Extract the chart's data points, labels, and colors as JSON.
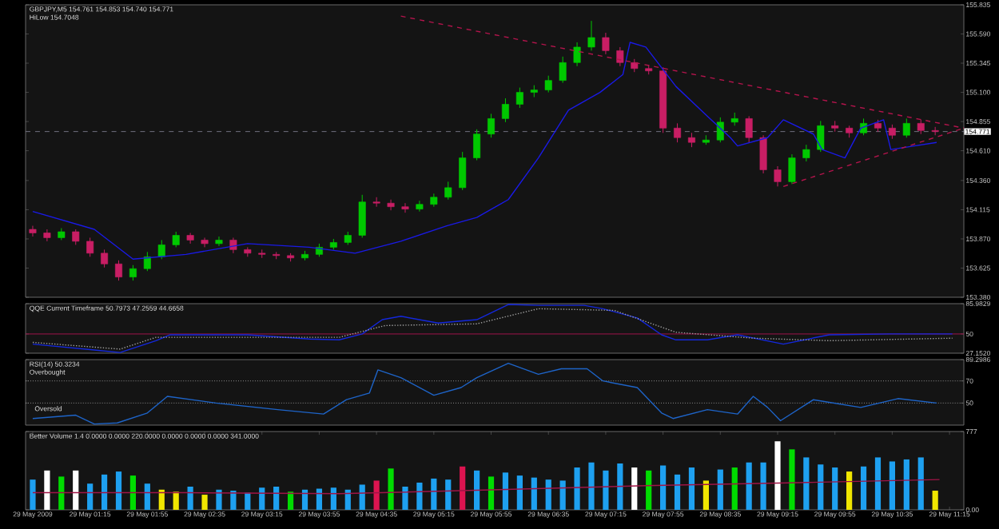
{
  "chart_data": [
    {
      "type": "candlestick",
      "title": "GBPJPY,M5 154.761 154.853 154.740 154.771",
      "annotations": [
        "HiLow 154.7048"
      ],
      "tick_labels": "y",
      "xlim": [
        "2009-05-29T00:30",
        "2009-05-29T11:25"
      ],
      "ylim": [
        153.38,
        155.835
      ],
      "yticks": [
        155.835,
        {
          "value": 155.59,
          "label": "155.590"
        },
        155.345,
        {
          "value": 155.1,
          "label": "155.100"
        },
        154.855,
        {
          "value": 154.61,
          "label": "154.610"
        },
        {
          "value": 154.36,
          "label": "154.360"
        },
        154.115,
        {
          "value": 153.87,
          "label": "153.870"
        },
        153.625,
        {
          "value": 153.38,
          "label": "153.380"
        }
      ],
      "x": [
        "2009-05-29T00:35",
        "2009-05-29T00:45",
        "2009-05-29T00:55",
        "2009-05-29T01:05",
        "2009-05-29T01:15",
        "2009-05-29T01:25",
        "2009-05-29T01:35",
        "2009-05-29T01:45",
        "2009-05-29T01:55",
        "2009-05-29T02:05",
        "2009-05-29T02:15",
        "2009-05-29T02:25",
        "2009-05-29T02:35",
        "2009-05-29T02:45",
        "2009-05-29T02:55",
        "2009-05-29T03:05",
        "2009-05-29T03:15",
        "2009-05-29T03:25",
        "2009-05-29T03:35",
        "2009-05-29T03:45",
        "2009-05-29T03:55",
        "2009-05-29T04:05",
        "2009-05-29T04:15",
        "2009-05-29T04:25",
        "2009-05-29T04:35",
        "2009-05-29T04:45",
        "2009-05-29T04:55",
        "2009-05-29T05:05",
        "2009-05-29T05:15",
        "2009-05-29T05:25",
        "2009-05-29T05:35",
        "2009-05-29T05:45",
        "2009-05-29T05:55",
        "2009-05-29T06:05",
        "2009-05-29T06:15",
        "2009-05-29T06:25",
        "2009-05-29T06:35",
        "2009-05-29T06:45",
        "2009-05-29T06:55",
        "2009-05-29T07:05",
        "2009-05-29T07:15",
        "2009-05-29T07:25",
        "2009-05-29T07:35",
        "2009-05-29T07:45",
        "2009-05-29T07:55",
        "2009-05-29T08:05",
        "2009-05-29T08:15",
        "2009-05-29T08:25",
        "2009-05-29T08:35",
        "2009-05-29T08:45",
        "2009-05-29T08:55",
        "2009-05-29T09:05",
        "2009-05-29T09:15",
        "2009-05-29T09:25",
        "2009-05-29T09:35",
        "2009-05-29T09:45",
        "2009-05-29T09:55",
        "2009-05-29T10:05",
        "2009-05-29T10:15",
        "2009-05-29T10:25",
        "2009-05-29T10:35",
        "2009-05-29T10:45",
        "2009-05-29T10:55",
        "2009-05-29T11:05"
      ],
      "ohlc": [
        [
          153.95,
          153.98,
          153.89,
          153.92
        ],
        [
          153.92,
          153.95,
          153.85,
          153.88
        ],
        [
          153.88,
          153.96,
          153.86,
          153.93
        ],
        [
          153.93,
          153.95,
          153.82,
          153.85
        ],
        [
          153.85,
          153.88,
          153.72,
          153.75
        ],
        [
          153.75,
          153.78,
          153.63,
          153.66
        ],
        [
          153.66,
          153.69,
          153.52,
          153.55
        ],
        [
          153.55,
          153.65,
          153.52,
          153.62
        ],
        [
          153.62,
          153.76,
          153.6,
          153.72
        ],
        [
          153.72,
          153.86,
          153.7,
          153.82
        ],
        [
          153.82,
          153.93,
          153.8,
          153.9
        ],
        [
          153.9,
          153.92,
          153.83,
          153.86
        ],
        [
          153.86,
          153.88,
          153.8,
          153.83
        ],
        [
          153.83,
          153.89,
          153.81,
          153.86
        ],
        [
          153.86,
          153.88,
          153.75,
          153.78
        ],
        [
          153.78,
          153.8,
          153.72,
          153.75
        ],
        [
          153.75,
          153.78,
          153.71,
          153.74
        ],
        [
          153.74,
          153.76,
          153.7,
          153.73
        ],
        [
          153.73,
          153.75,
          153.68,
          153.71
        ],
        [
          153.71,
          153.77,
          153.69,
          153.74
        ],
        [
          153.74,
          153.83,
          153.72,
          153.8
        ],
        [
          153.8,
          153.87,
          153.78,
          153.84
        ],
        [
          153.84,
          153.93,
          153.82,
          153.9
        ],
        [
          153.9,
          154.24,
          153.88,
          154.18
        ],
        [
          154.18,
          154.22,
          154.14,
          154.17
        ],
        [
          154.17,
          154.2,
          154.11,
          154.14
        ],
        [
          154.14,
          154.17,
          154.09,
          154.12
        ],
        [
          154.12,
          154.19,
          154.1,
          154.16
        ],
        [
          154.16,
          154.25,
          154.14,
          154.22
        ],
        [
          154.22,
          154.35,
          154.2,
          154.3
        ],
        [
          154.3,
          154.6,
          154.28,
          154.55
        ],
        [
          154.55,
          154.79,
          154.53,
          154.75
        ],
        [
          154.75,
          154.92,
          154.72,
          154.88
        ],
        [
          154.88,
          155.05,
          154.85,
          155.0
        ],
        [
          155.0,
          155.14,
          154.97,
          155.1
        ],
        [
          155.1,
          155.16,
          155.06,
          155.12
        ],
        [
          155.12,
          155.24,
          155.1,
          155.2
        ],
        [
          155.2,
          155.4,
          155.18,
          155.35
        ],
        [
          155.35,
          155.52,
          155.32,
          155.48
        ],
        [
          155.48,
          155.7,
          155.45,
          155.56
        ],
        [
          155.56,
          155.6,
          155.42,
          155.45
        ],
        [
          155.45,
          155.48,
          155.32,
          155.35
        ],
        [
          155.35,
          155.38,
          155.27,
          155.3
        ],
        [
          155.3,
          155.33,
          155.25,
          155.28
        ],
        [
          155.28,
          155.31,
          154.76,
          154.8
        ],
        [
          154.8,
          154.84,
          154.68,
          154.72
        ],
        [
          154.72,
          154.76,
          154.64,
          154.68
        ],
        [
          154.68,
          154.74,
          154.66,
          154.7
        ],
        [
          154.7,
          154.89,
          154.68,
          154.85
        ],
        [
          154.85,
          154.93,
          154.82,
          154.88
        ],
        [
          154.88,
          154.9,
          154.68,
          154.72
        ],
        [
          154.72,
          154.74,
          154.42,
          154.45
        ],
        [
          154.45,
          154.48,
          154.31,
          154.35
        ],
        [
          154.35,
          154.58,
          154.33,
          154.55
        ],
        [
          154.55,
          154.66,
          154.52,
          154.62
        ],
        [
          154.62,
          154.86,
          154.6,
          154.82
        ],
        [
          154.82,
          154.86,
          154.77,
          154.8
        ],
        [
          154.8,
          154.82,
          154.72,
          154.76
        ],
        [
          154.76,
          154.88,
          154.74,
          154.84
        ],
        [
          154.84,
          154.87,
          154.77,
          154.8
        ],
        [
          154.8,
          154.83,
          154.71,
          154.74
        ],
        [
          154.74,
          154.88,
          154.72,
          154.84
        ],
        [
          154.84,
          154.87,
          154.75,
          154.78
        ],
        [
          154.78,
          154.81,
          154.74,
          154.771
        ]
      ],
      "series": [
        {
          "type": "line",
          "color": "#1a1ae6",
          "line_style": "solid",
          "x": [
            "2009-05-29T00:35",
            "2009-05-29T01:18",
            "2009-05-29T01:45",
            "2009-05-29T02:22",
            "2009-05-29T03:05",
            "2009-05-29T03:48",
            "2009-05-29T04:20",
            "2009-05-29T04:52",
            "2009-05-29T05:24",
            "2009-05-29T05:45",
            "2009-05-29T06:07",
            "2009-05-29T06:28",
            "2009-05-29T06:49",
            "2009-05-29T07:11",
            "2009-05-29T07:27",
            "2009-05-29T07:32",
            "2009-05-29T07:43",
            "2009-05-29T08:04",
            "2009-05-29T08:26",
            "2009-05-29T08:42",
            "2009-05-29T08:47",
            "2009-05-29T09:08",
            "2009-05-29T09:19",
            "2009-05-29T09:40",
            "2009-05-29T09:46",
            "2009-05-29T10:02",
            "2009-05-29T10:13",
            "2009-05-29T10:29",
            "2009-05-29T10:34",
            "2009-05-29T10:45",
            "2009-05-29T11:06"
          ],
          "values": [
            154.1,
            153.95,
            153.7,
            153.74,
            153.83,
            153.8,
            153.75,
            153.85,
            153.98,
            154.05,
            154.2,
            154.55,
            154.95,
            155.1,
            155.25,
            155.52,
            155.48,
            155.15,
            154.9,
            154.72,
            154.65,
            154.72,
            154.87,
            154.75,
            154.62,
            154.55,
            154.8,
            154.87,
            154.62,
            154.64,
            154.68
          ]
        },
        {
          "type": "line",
          "color": "#b4144c",
          "line_style": "dashed",
          "x": [
            "2009-05-29T04:52",
            "2009-05-29T11:25"
          ],
          "values": [
            155.74,
            154.8
          ]
        },
        {
          "type": "line",
          "color": "#b4144c",
          "line_style": "dashed",
          "x": [
            "2009-05-29T09:19",
            "2009-05-29T11:25"
          ],
          "values": [
            154.31,
            154.8
          ]
        }
      ],
      "ref_lines": [
        {
          "axis": "y",
          "value": 154.771,
          "label": "154.771",
          "color": "#707080",
          "line_style": "dashed"
        }
      ]
    },
    {
      "type": "line",
      "title": "QQE Current Timeframe 50.7973 47.2559 44.6658",
      "tick_labels": "y",
      "xlim": [
        "2009-05-29T00:30",
        "2009-05-29T11:25"
      ],
      "ylim": [
        27.152,
        85.9829
      ],
      "yticks": [
        85.9829,
        50,
        {
          "value": 27.152,
          "label": "27.1520"
        }
      ],
      "series": [
        {
          "type": "line",
          "color": "#1428dc",
          "line_style": "solid",
          "x": [
            "2009-05-29T00:35",
            "2009-05-29T01:18",
            "2009-05-29T01:36",
            "2009-05-29T02:01",
            "2009-05-29T02:11",
            "2009-05-29T03:05",
            "2009-05-29T03:48",
            "2009-05-29T04:09",
            "2009-05-29T04:25",
            "2009-05-29T04:39",
            "2009-05-29T04:52",
            "2009-05-29T05:18",
            "2009-05-29T05:45",
            "2009-05-29T06:07",
            "2009-05-29T06:28",
            "2009-05-29T07:00",
            "2009-05-29T07:13",
            "2009-05-29T07:37",
            "2009-05-29T07:54",
            "2009-05-29T08:04",
            "2009-05-29T08:26",
            "2009-05-29T08:47",
            "2009-05-29T09:19",
            "2009-05-29T09:51",
            "2009-05-29T10:34",
            "2009-05-29T11:17"
          ],
          "values": [
            38,
            31,
            28,
            42,
            49,
            49,
            44,
            43,
            50,
            67,
            71,
            63,
            67,
            85,
            84,
            84,
            80,
            69,
            49,
            43,
            43,
            49,
            38,
            49,
            50,
            50
          ]
        },
        {
          "type": "line",
          "color": "#a0a0a0",
          "line_style": "dotted",
          "x": [
            "2009-05-29T00:35",
            "2009-05-29T01:36",
            "2009-05-29T02:01",
            "2009-05-29T03:05",
            "2009-05-29T04:09",
            "2009-05-29T04:41",
            "2009-05-29T05:45",
            "2009-05-29T06:28",
            "2009-05-29T07:21",
            "2009-05-29T08:04",
            "2009-05-29T08:58",
            "2009-05-29T09:51",
            "2009-05-29T11:17"
          ],
          "values": [
            40,
            32,
            46,
            46,
            46,
            60,
            62,
            80,
            78,
            52,
            45,
            42,
            45
          ]
        }
      ],
      "ref_lines": [
        {
          "axis": "y",
          "value": 50,
          "color": "#a0144c",
          "line_style": "solid"
        }
      ]
    },
    {
      "type": "line",
      "title": "RSI(14) 50.3234",
      "tick_labels": "y",
      "annotations": [
        "Overbought",
        {
          "text": "Oversold",
          "x": "2009-05-29T00:35",
          "y": 45
        }
      ],
      "xlim": [
        "2009-05-29T00:30",
        "2009-05-29T11:25"
      ],
      "ylim": [
        30,
        89.2986
      ],
      "yticks": [
        89.2986,
        70,
        50
      ],
      "series": [
        {
          "type": "line",
          "color": "#1e64c8",
          "line_style": "solid",
          "x": [
            "2009-05-29T00:35",
            "2009-05-29T01:05",
            "2009-05-29T01:18",
            "2009-05-29T01:34",
            "2009-05-29T01:55",
            "2009-05-29T02:09",
            "2009-05-29T02:43",
            "2009-05-29T03:26",
            "2009-05-29T03:58",
            "2009-05-29T04:14",
            "2009-05-29T04:30",
            "2009-05-29T04:36",
            "2009-05-29T04:52",
            "2009-05-29T05:15",
            "2009-05-29T05:34",
            "2009-05-29T05:45",
            "2009-05-29T06:07",
            "2009-05-29T06:28",
            "2009-05-29T06:44",
            "2009-05-29T07:02",
            "2009-05-29T07:13",
            "2009-05-29T07:37",
            "2009-05-29T07:54",
            "2009-05-29T08:02",
            "2009-05-29T08:26",
            "2009-05-29T08:47",
            "2009-05-29T08:58",
            "2009-05-29T09:08",
            "2009-05-29T09:17",
            "2009-05-29T09:40",
            "2009-05-29T10:13",
            "2009-05-29T10:39",
            "2009-05-29T11:06"
          ],
          "values": [
            36,
            39,
            31,
            32,
            41,
            56,
            50,
            44,
            40,
            53,
            59,
            80,
            73,
            57,
            64,
            73,
            86,
            76,
            81,
            81,
            70,
            64,
            41,
            36,
            44,
            40,
            56,
            46,
            34,
            53,
            46,
            54,
            50
          ]
        }
      ],
      "ref_lines": [
        {
          "axis": "y",
          "value": 70,
          "color": "#909090",
          "line_style": "dotted"
        },
        {
          "axis": "y",
          "value": 50,
          "color": "#909090",
          "line_style": "dotted"
        }
      ]
    },
    {
      "type": "bar",
      "title": "Better Volume 1.4 0.0000 0.0000 220.0000 0.0000 0.0000 0.0000 341.0000",
      "xlim": [
        "2009-05-29T00:30",
        "2009-05-29T11:25"
      ],
      "ylim": [
        0,
        777
      ],
      "yticks": [
        777,
        {
          "value": 0,
          "label": "0.00"
        }
      ],
      "xticks": [
        {
          "value": "2009-05-29T00:35",
          "label": "29 May 2009"
        },
        {
          "value": "2009-05-29T01:15",
          "label": "29 May 01:15"
        },
        {
          "value": "2009-05-29T01:55",
          "label": "29 May 01:55"
        },
        {
          "value": "2009-05-29T02:35",
          "label": "29 May 02:35"
        },
        {
          "value": "2009-05-29T03:15",
          "label": "29 May 03:15"
        },
        {
          "value": "2009-05-29T03:55",
          "label": "29 May 03:55"
        },
        {
          "value": "2009-05-29T04:35",
          "label": "29 May 04:35"
        },
        {
          "value": "2009-05-29T05:15",
          "label": "29 May 05:15"
        },
        {
          "value": "2009-05-29T05:55",
          "label": "29 May 05:55"
        },
        {
          "value": "2009-05-29T06:35",
          "label": "29 May 06:35"
        },
        {
          "value": "2009-05-29T07:15",
          "label": "29 May 07:15"
        },
        {
          "value": "2009-05-29T07:55",
          "label": "29 May 07:55"
        },
        {
          "value": "2009-05-29T08:35",
          "label": "29 May 08:35"
        },
        {
          "value": "2009-05-29T09:15",
          "label": "29 May 09:15"
        },
        {
          "value": "2009-05-29T09:55",
          "label": "29 May 09:55"
        },
        {
          "value": "2009-05-29T10:35",
          "label": "29 May 10:35"
        },
        {
          "value": "2009-05-29T11:15",
          "label": "29 May 11:15"
        }
      ],
      "series": [
        {
          "type": "bar",
          "x": [
            "2009-05-29T00:35",
            "2009-05-29T00:45",
            "2009-05-29T00:55",
            "2009-05-29T01:05",
            "2009-05-29T01:15",
            "2009-05-29T01:25",
            "2009-05-29T01:35",
            "2009-05-29T01:45",
            "2009-05-29T01:55",
            "2009-05-29T02:05",
            "2009-05-29T02:15",
            "2009-05-29T02:25",
            "2009-05-29T02:35",
            "2009-05-29T02:45",
            "2009-05-29T02:55",
            "2009-05-29T03:05",
            "2009-05-29T03:15",
            "2009-05-29T03:25",
            "2009-05-29T03:35",
            "2009-05-29T03:45",
            "2009-05-29T03:55",
            "2009-05-29T04:05",
            "2009-05-29T04:15",
            "2009-05-29T04:25",
            "2009-05-29T04:35",
            "2009-05-29T04:45",
            "2009-05-29T04:55",
            "2009-05-29T05:05",
            "2009-05-29T05:15",
            "2009-05-29T05:25",
            "2009-05-29T05:35",
            "2009-05-29T05:45",
            "2009-05-29T05:55",
            "2009-05-29T06:05",
            "2009-05-29T06:15",
            "2009-05-29T06:25",
            "2009-05-29T06:35",
            "2009-05-29T06:45",
            "2009-05-29T06:55",
            "2009-05-29T07:05",
            "2009-05-29T07:15",
            "2009-05-29T07:25",
            "2009-05-29T07:35",
            "2009-05-29T07:45",
            "2009-05-29T07:55",
            "2009-05-29T08:05",
            "2009-05-29T08:15",
            "2009-05-29T08:25",
            "2009-05-29T08:35",
            "2009-05-29T08:45",
            "2009-05-29T08:55",
            "2009-05-29T09:05",
            "2009-05-29T09:15",
            "2009-05-29T09:25",
            "2009-05-29T09:35",
            "2009-05-29T09:45",
            "2009-05-29T09:55",
            "2009-05-29T10:05",
            "2009-05-29T10:15",
            "2009-05-29T10:25",
            "2009-05-29T10:35",
            "2009-05-29T10:45",
            "2009-05-29T10:55",
            "2009-05-29T11:05"
          ],
          "values": [
            300,
            390,
            330,
            390,
            260,
            350,
            380,
            340,
            260,
            200,
            180,
            230,
            150,
            200,
            190,
            170,
            220,
            230,
            180,
            200,
            210,
            220,
            200,
            250,
            290,
            410,
            230,
            270,
            310,
            300,
            430,
            390,
            330,
            370,
            340,
            320,
            300,
            290,
            420,
            470,
            390,
            460,
            420,
            390,
            440,
            350,
            420,
            290,
            400,
            420,
            470,
            470,
            680,
            600,
            520,
            450,
            420,
            380,
            430,
            520,
            480,
            500,
            520,
            190
          ],
          "colors": [
            "#1ea0f0",
            "#ffffff",
            "#00dc00",
            "#ffffff",
            "#1ea0f0",
            "#1ea0f0",
            "#1ea0f0",
            "#00dc00",
            "#1ea0f0",
            "#f0e600",
            "#f0e600",
            "#1ea0f0",
            "#f0e600",
            "#1ea0f0",
            "#1ea0f0",
            "#1ea0f0",
            "#1ea0f0",
            "#1ea0f0",
            "#00dc00",
            "#1ea0f0",
            "#1ea0f0",
            "#1ea0f0",
            "#1ea0f0",
            "#1ea0f0",
            "#dc1450",
            "#00dc00",
            "#1ea0f0",
            "#1ea0f0",
            "#1ea0f0",
            "#1ea0f0",
            "#dc1450",
            "#1ea0f0",
            "#00dc00",
            "#1ea0f0",
            "#1ea0f0",
            "#1ea0f0",
            "#1ea0f0",
            "#1ea0f0",
            "#1ea0f0",
            "#1ea0f0",
            "#1ea0f0",
            "#1ea0f0",
            "#ffffff",
            "#00dc00",
            "#1ea0f0",
            "#1ea0f0",
            "#1ea0f0",
            "#f0e600",
            "#1ea0f0",
            "#00dc00",
            "#1ea0f0",
            "#1ea0f0",
            "#ffffff",
            "#00dc00",
            "#1ea0f0",
            "#1ea0f0",
            "#1ea0f0",
            "#f0e600",
            "#1ea0f0",
            "#1ea0f0",
            "#1ea0f0",
            "#1ea0f0",
            "#1ea0f0",
            "#f0e600"
          ]
        },
        {
          "type": "line",
          "color": "#a01446",
          "line_style": "solid",
          "x": [
            "2009-05-29T00:35",
            "2009-05-29T02:22",
            "2009-05-29T04:09",
            "2009-05-29T05:34",
            "2009-05-29T07:43",
            "2009-05-29T09:30",
            "2009-05-29T11:08"
          ],
          "values": [
            170,
            170,
            160,
            190,
            240,
            270,
            300
          ]
        }
      ]
    }
  ]
}
